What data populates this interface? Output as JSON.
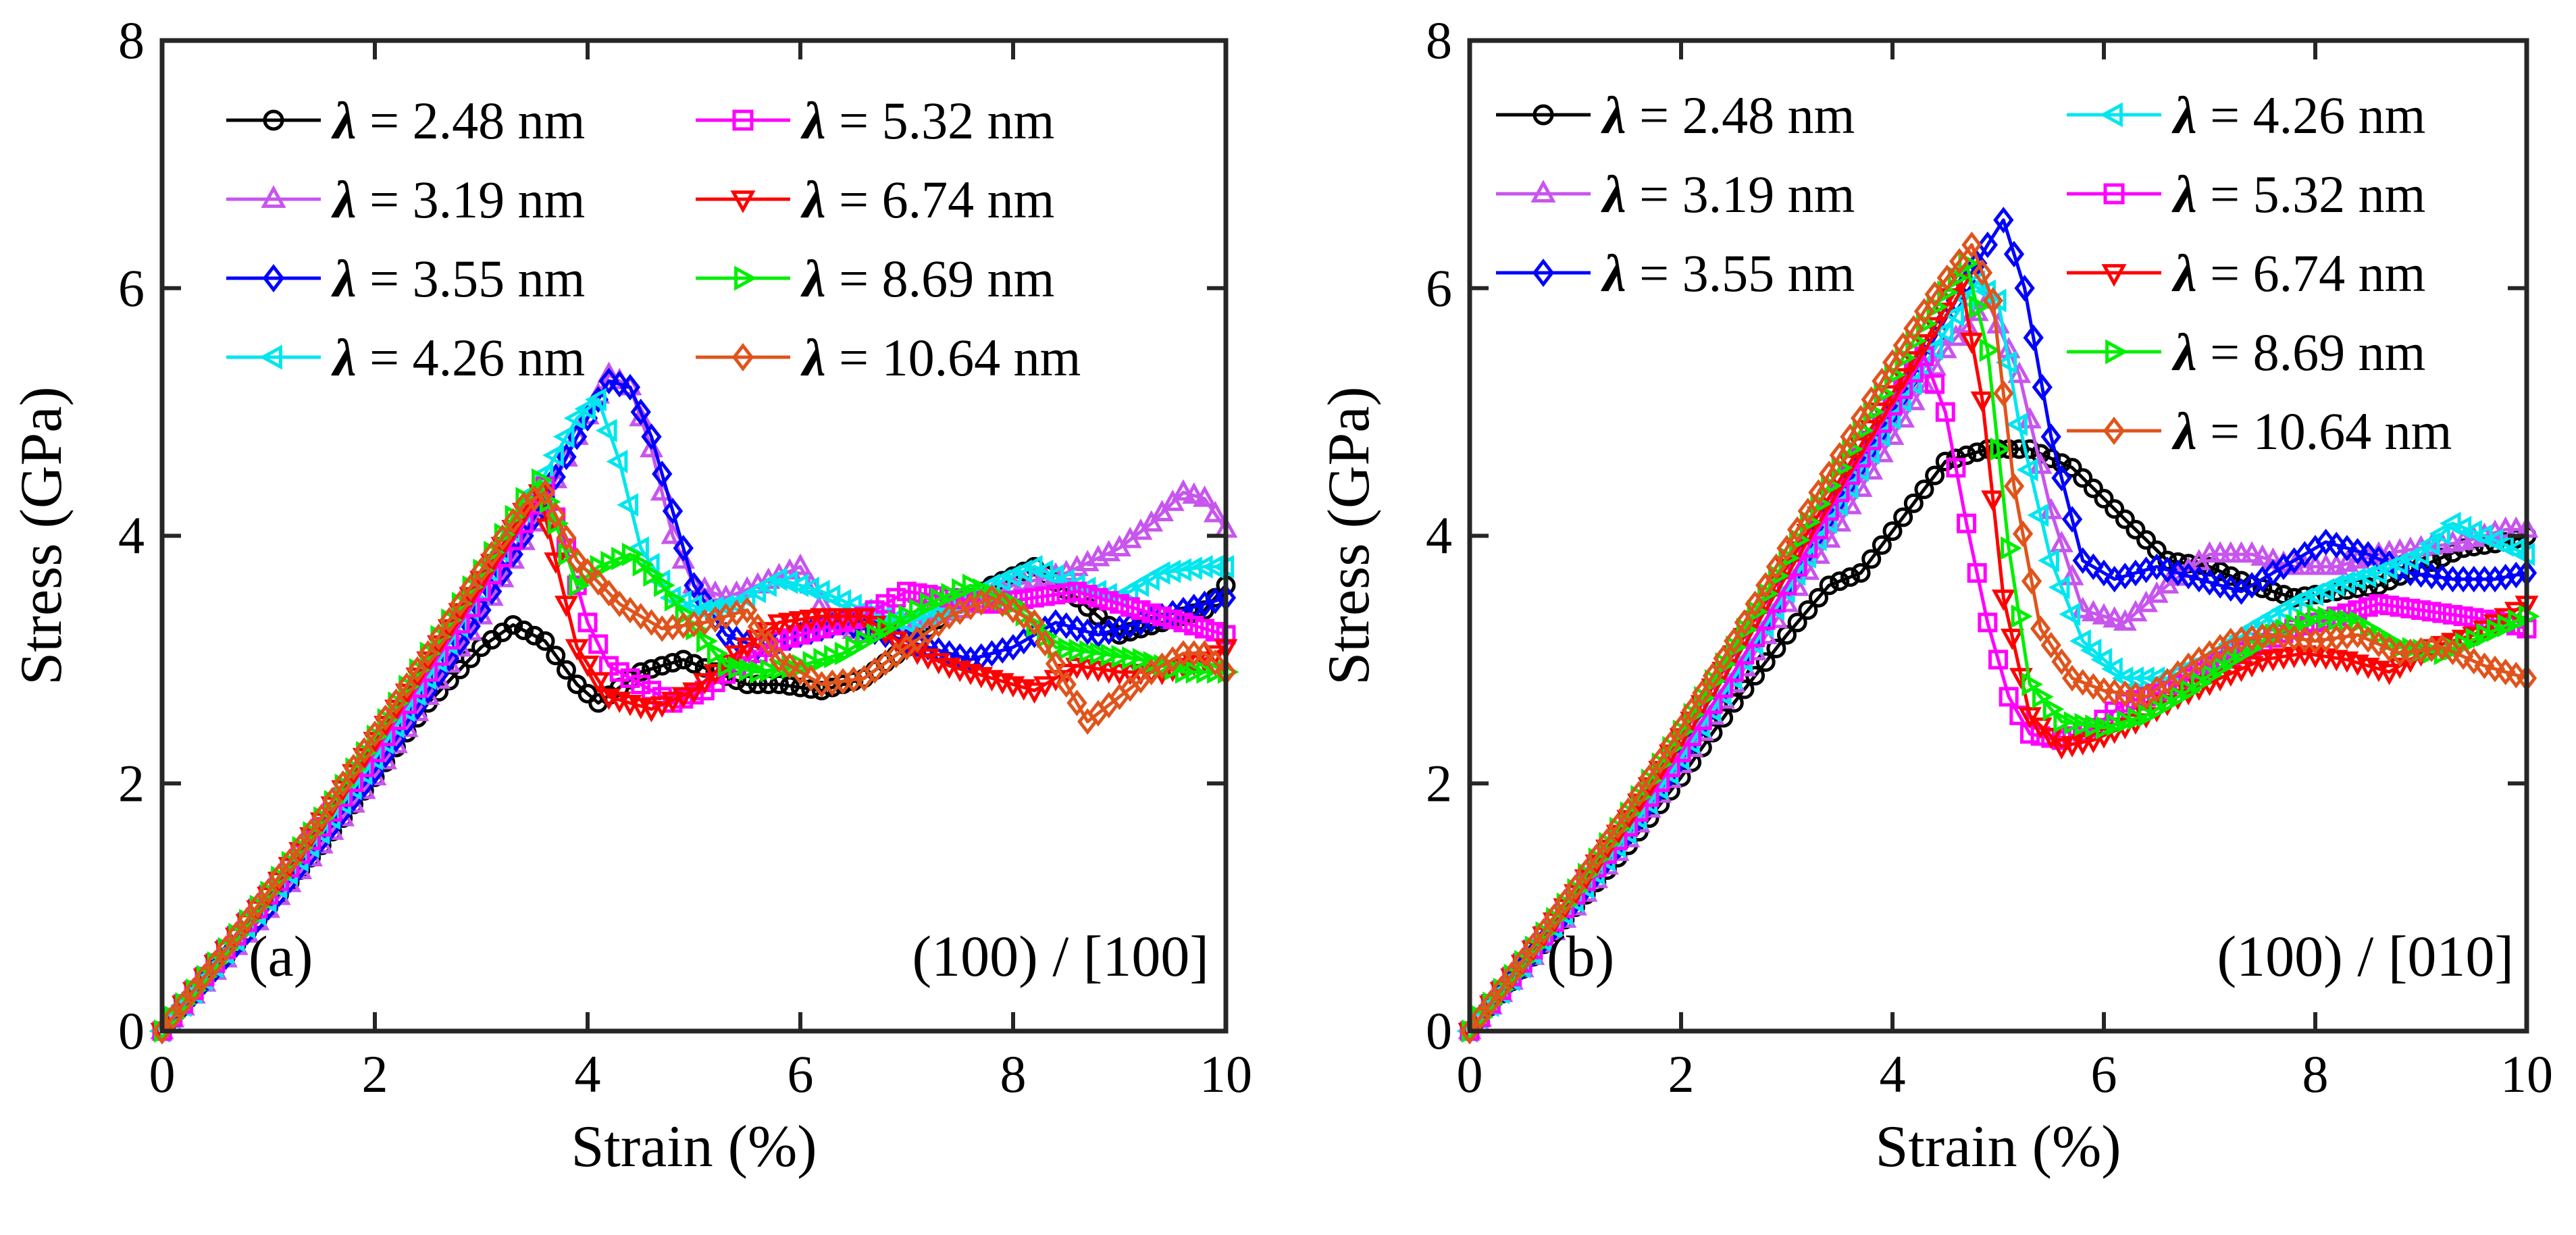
{
  "chart_data": [
    {
      "type": "line",
      "panel_label": "(a)",
      "orientation_label": "(100) / [100]",
      "xlabel": "Strain (%)",
      "ylabel": "Stress (GPa)",
      "xlim": [
        0,
        10
      ],
      "ylim": [
        0,
        8
      ],
      "xticks": [
        "0",
        "2",
        "4",
        "6",
        "8",
        "10"
      ],
      "yticks": [
        "0",
        "2",
        "4",
        "6",
        "8"
      ],
      "legend_columns": 2,
      "series": [
        {
          "name": "λ = 2.48 nm",
          "lambda_value": "2.48 nm",
          "color": "#000000",
          "marker": "circle",
          "x": [
            0,
            0.5,
            1,
            1.5,
            2,
            2.5,
            3,
            3.3,
            3.6,
            3.9,
            4.1,
            4.5,
            4.9,
            5.2,
            5.5,
            5.8,
            6.2,
            6.6,
            7,
            7.4,
            7.8,
            8.2,
            8.6,
            9,
            9.4,
            9.8,
            10
          ],
          "y": [
            0,
            0.5,
            1.0,
            1.5,
            2.05,
            2.65,
            3.1,
            3.28,
            3.15,
            2.8,
            2.65,
            2.9,
            3.0,
            2.9,
            2.8,
            2.8,
            2.75,
            2.85,
            3.1,
            3.4,
            3.6,
            3.75,
            3.5,
            3.2,
            3.3,
            3.4,
            3.6
          ]
        },
        {
          "name": "λ = 3.19 nm",
          "lambda_value": "3.19 nm",
          "color": "#c755ee",
          "marker": "triangle-up",
          "x": [
            0,
            0.5,
            1,
            1.5,
            2,
            2.5,
            3,
            3.5,
            3.9,
            4.2,
            4.4,
            4.6,
            4.8,
            5.0,
            5.3,
            5.6,
            6.0,
            6.3,
            6.6,
            7,
            7.5,
            8,
            8.5,
            9,
            9.3,
            9.6,
            9.8,
            10
          ],
          "y": [
            0,
            0.48,
            0.98,
            1.5,
            2.05,
            2.7,
            3.35,
            4.1,
            4.8,
            5.3,
            5.2,
            4.7,
            4.0,
            3.6,
            3.5,
            3.6,
            3.75,
            3.3,
            3.2,
            3.3,
            3.4,
            3.6,
            3.7,
            3.9,
            4.1,
            4.35,
            4.3,
            4.05
          ]
        },
        {
          "name": "λ = 3.55 nm",
          "lambda_value": "3.55 nm",
          "color": "#0000ff",
          "marker": "diamond",
          "x": [
            0,
            0.5,
            1,
            1.5,
            2,
            2.5,
            3,
            3.5,
            3.9,
            4.2,
            4.4,
            4.6,
            4.8,
            5.0,
            5.3,
            5.6,
            6.0,
            6.4,
            6.8,
            7.2,
            7.6,
            8,
            8.4,
            8.8,
            9.2,
            9.6,
            10
          ],
          "y": [
            0,
            0.5,
            1.0,
            1.55,
            2.1,
            2.75,
            3.4,
            4.15,
            4.8,
            5.25,
            5.2,
            4.8,
            4.2,
            3.6,
            3.2,
            3.1,
            3.2,
            3.3,
            3.2,
            3.1,
            3.0,
            3.1,
            3.3,
            3.2,
            3.3,
            3.4,
            3.5
          ]
        },
        {
          "name": "λ = 4.26 nm",
          "lambda_value": "4.26 nm",
          "color": "#00e6ee",
          "marker": "triangle-left",
          "x": [
            0,
            0.5,
            1,
            1.5,
            2,
            2.5,
            3,
            3.5,
            3.9,
            4.1,
            4.3,
            4.5,
            4.8,
            5.1,
            5.4,
            5.8,
            6.2,
            6.6,
            7,
            7.4,
            7.8,
            8.2,
            8.6,
            9,
            9.4,
            9.8,
            10
          ],
          "y": [
            0,
            0.52,
            1.05,
            1.6,
            2.2,
            2.85,
            3.55,
            4.35,
            4.95,
            5.1,
            4.6,
            3.9,
            3.5,
            3.4,
            3.45,
            3.65,
            3.55,
            3.4,
            3.3,
            3.4,
            3.6,
            3.75,
            3.6,
            3.5,
            3.7,
            3.75,
            3.75
          ]
        },
        {
          "name": "λ = 5.32 nm",
          "lambda_value": "5.32 nm",
          "color": "#ff00ff",
          "marker": "square",
          "x": [
            0,
            0.5,
            1,
            1.5,
            2,
            2.5,
            3,
            3.4,
            3.6,
            3.8,
            4.0,
            4.2,
            4.5,
            4.8,
            5.1,
            5.4,
            5.8,
            6.2,
            6.6,
            7,
            7.4,
            7.8,
            8.2,
            8.6,
            9,
            9.4,
            9.8,
            10
          ],
          "y": [
            0,
            0.55,
            1.1,
            1.65,
            2.25,
            2.9,
            3.55,
            4.1,
            4.4,
            3.9,
            3.3,
            2.95,
            2.8,
            2.65,
            2.75,
            2.95,
            3.15,
            3.25,
            3.35,
            3.55,
            3.5,
            3.45,
            3.5,
            3.55,
            3.45,
            3.35,
            3.25,
            3.2
          ]
        },
        {
          "name": "λ = 6.74 nm",
          "lambda_value": "6.74 nm",
          "color": "#ff0000",
          "marker": "triangle-down",
          "x": [
            0,
            0.5,
            1,
            1.5,
            2,
            2.5,
            3,
            3.4,
            3.55,
            3.7,
            3.9,
            4.2,
            4.6,
            5.0,
            5.4,
            5.8,
            6.2,
            6.6,
            7,
            7.4,
            7.8,
            8.2,
            8.6,
            9,
            9.4,
            9.8,
            10
          ],
          "y": [
            0,
            0.55,
            1.1,
            1.7,
            2.35,
            3.0,
            3.65,
            4.2,
            4.35,
            3.8,
            3.1,
            2.7,
            2.6,
            2.75,
            3.05,
            3.3,
            3.35,
            3.35,
            3.1,
            2.95,
            2.85,
            2.75,
            2.95,
            2.9,
            2.9,
            3.0,
            3.1
          ]
        },
        {
          "name": "λ = 8.69 nm",
          "lambda_value": "8.69 nm",
          "color": "#00ee00",
          "marker": "triangle-right",
          "x": [
            0,
            0.5,
            1,
            1.5,
            2,
            2.5,
            3,
            3.4,
            3.55,
            3.7,
            3.9,
            4.1,
            4.4,
            4.7,
            5.0,
            5.3,
            5.6,
            6.0,
            6.4,
            6.8,
            7.2,
            7.6,
            8,
            8.4,
            8.8,
            9.2,
            9.6,
            10
          ],
          "y": [
            0,
            0.55,
            1.12,
            1.72,
            2.38,
            3.05,
            3.72,
            4.3,
            4.45,
            4.1,
            3.6,
            3.75,
            3.85,
            3.6,
            3.25,
            2.95,
            2.9,
            2.95,
            3.05,
            3.25,
            3.45,
            3.6,
            3.45,
            3.1,
            3.05,
            3.0,
            2.9,
            2.9
          ]
        },
        {
          "name": "λ = 10.64 nm",
          "lambda_value": "10.64 nm",
          "color": "#e0541c",
          "marker": "diamond",
          "x": [
            0,
            0.5,
            1,
            1.5,
            2,
            2.5,
            3,
            3.4,
            3.6,
            3.9,
            4.3,
            4.7,
            5.1,
            5.5,
            5.8,
            6.2,
            6.6,
            7,
            7.4,
            7.8,
            8.2,
            8.5,
            8.7,
            9,
            9.3,
            9.6,
            9.8,
            10
          ],
          "y": [
            0,
            0.55,
            1.13,
            1.73,
            2.4,
            3.05,
            3.72,
            4.25,
            4.35,
            3.8,
            3.45,
            3.25,
            3.3,
            3.4,
            3.0,
            2.8,
            2.85,
            3.1,
            3.35,
            3.5,
            3.3,
            2.8,
            2.5,
            2.7,
            2.9,
            3.05,
            3.05,
            2.9
          ]
        }
      ]
    },
    {
      "type": "line",
      "panel_label": "(b)",
      "orientation_label": "(100) / [010]",
      "xlabel": "Strain (%)",
      "ylabel": "Stress (GPa)",
      "xlim": [
        0,
        10
      ],
      "ylim": [
        0,
        8
      ],
      "xticks": [
        "0",
        "2",
        "4",
        "6",
        "8",
        "10"
      ],
      "yticks": [
        "0",
        "2",
        "4",
        "6",
        "8"
      ],
      "legend_columns": 2,
      "series": [
        {
          "name": "λ = 2.48 nm",
          "lambda_value": "2.48 nm",
          "color": "#000000",
          "marker": "circle",
          "x": [
            0,
            0.5,
            1,
            1.5,
            2,
            2.5,
            3,
            3.4,
            3.7,
            4.1,
            4.5,
            4.9,
            5.3,
            5.7,
            6.0,
            6.3,
            6.6,
            7.0,
            7.4,
            7.8,
            8.2,
            8.6,
            9.0,
            9.4,
            9.8,
            10
          ],
          "y": [
            0,
            0.5,
            1.0,
            1.5,
            2.05,
            2.65,
            3.2,
            3.6,
            3.7,
            4.15,
            4.6,
            4.7,
            4.7,
            4.55,
            4.3,
            4.05,
            3.8,
            3.75,
            3.6,
            3.5,
            3.55,
            3.6,
            3.75,
            3.9,
            3.95,
            4.0
          ]
        },
        {
          "name": "λ = 3.19 nm",
          "lambda_value": "3.19 nm",
          "color": "#c755ee",
          "marker": "triangle-up",
          "x": [
            0,
            0.5,
            1,
            1.5,
            2,
            2.5,
            3,
            3.5,
            4.0,
            4.5,
            4.9,
            5.2,
            5.5,
            5.8,
            6.2,
            6.6,
            7.0,
            7.4,
            7.8,
            8.2,
            8.6,
            9.0,
            9.4,
            9.8,
            10
          ],
          "y": [
            0,
            0.5,
            1.0,
            1.55,
            2.15,
            2.8,
            3.45,
            4.1,
            4.8,
            5.5,
            5.9,
            5.3,
            4.2,
            3.4,
            3.3,
            3.6,
            3.85,
            3.85,
            3.75,
            3.75,
            3.85,
            3.9,
            3.95,
            4.05,
            4.05
          ]
        },
        {
          "name": "λ = 3.55 nm",
          "lambda_value": "3.55 nm",
          "color": "#0000ff",
          "marker": "diamond",
          "x": [
            0,
            0.5,
            1,
            1.5,
            2,
            2.5,
            3,
            3.5,
            4.0,
            4.5,
            4.9,
            5.05,
            5.25,
            5.5,
            5.8,
            6.1,
            6.5,
            6.9,
            7.3,
            7.7,
            8.1,
            8.5,
            8.9,
            9.3,
            9.7,
            10
          ],
          "y": [
            0,
            0.52,
            1.05,
            1.6,
            2.2,
            2.9,
            3.6,
            4.3,
            5.0,
            5.75,
            6.35,
            6.55,
            6.0,
            4.8,
            3.8,
            3.65,
            3.75,
            3.65,
            3.55,
            3.75,
            3.95,
            3.85,
            3.7,
            3.65,
            3.65,
            3.7
          ]
        },
        {
          "name": "λ = 4.26 nm",
          "lambda_value": "4.26 nm",
          "color": "#00e6ee",
          "marker": "triangle-left",
          "x": [
            0,
            0.5,
            1,
            1.5,
            2,
            2.5,
            3,
            3.5,
            4.0,
            4.5,
            4.8,
            5.0,
            5.2,
            5.5,
            5.8,
            6.2,
            6.6,
            7.0,
            7.4,
            7.8,
            8.2,
            8.6,
            9.0,
            9.3,
            9.6,
            10
          ],
          "y": [
            0,
            0.52,
            1.05,
            1.6,
            2.2,
            2.85,
            3.55,
            4.25,
            4.95,
            5.65,
            6.05,
            5.9,
            4.9,
            3.8,
            3.15,
            2.85,
            2.85,
            3.0,
            3.25,
            3.45,
            3.6,
            3.7,
            3.85,
            4.1,
            4.0,
            3.85
          ]
        },
        {
          "name": "λ = 5.32 nm",
          "lambda_value": "5.32 nm",
          "color": "#ff00ff",
          "marker": "square",
          "x": [
            0,
            0.5,
            1,
            1.5,
            2,
            2.5,
            3,
            3.5,
            4.0,
            4.3,
            4.5,
            4.7,
            4.9,
            5.1,
            5.3,
            5.6,
            5.9,
            6.2,
            6.6,
            7.0,
            7.4,
            7.8,
            8.2,
            8.6,
            9.0,
            9.4,
            9.8,
            10
          ],
          "y": [
            0,
            0.55,
            1.1,
            1.65,
            2.25,
            2.9,
            3.6,
            4.35,
            5.05,
            5.45,
            5.0,
            4.1,
            3.3,
            2.7,
            2.4,
            2.35,
            2.45,
            2.65,
            2.75,
            2.95,
            3.1,
            3.25,
            3.35,
            3.45,
            3.4,
            3.35,
            3.3,
            3.25
          ]
        },
        {
          "name": "λ = 6.74 nm",
          "lambda_value": "6.74 nm",
          "color": "#ff0000",
          "marker": "triangle-down",
          "x": [
            0,
            0.5,
            1,
            1.5,
            2,
            2.5,
            3,
            3.5,
            4.0,
            4.4,
            4.65,
            4.85,
            5.05,
            5.3,
            5.6,
            5.9,
            6.3,
            6.7,
            7.1,
            7.5,
            7.9,
            8.3,
            8.7,
            9.1,
            9.5,
            9.8,
            10
          ],
          "y": [
            0,
            0.55,
            1.12,
            1.72,
            2.38,
            3.05,
            3.75,
            4.45,
            5.15,
            5.7,
            6.05,
            5.1,
            3.5,
            2.55,
            2.3,
            2.35,
            2.5,
            2.7,
            2.85,
            3.0,
            3.05,
            3.0,
            2.9,
            3.1,
            3.2,
            3.35,
            3.45
          ]
        },
        {
          "name": "λ = 8.69 nm",
          "lambda_value": "8.69 nm",
          "color": "#00ee00",
          "marker": "triangle-right",
          "x": [
            0,
            0.5,
            1,
            1.5,
            2,
            2.5,
            3,
            3.5,
            4.0,
            4.4,
            4.7,
            4.9,
            5.1,
            5.3,
            5.6,
            6.0,
            6.4,
            6.8,
            7.2,
            7.6,
            8.0,
            8.4,
            8.8,
            9.2,
            9.6,
            10
          ],
          "y": [
            0,
            0.56,
            1.14,
            1.76,
            2.42,
            3.1,
            3.82,
            4.55,
            5.3,
            5.85,
            6.2,
            5.5,
            3.9,
            2.8,
            2.5,
            2.45,
            2.55,
            2.75,
            3.0,
            3.2,
            3.35,
            3.3,
            3.1,
            3.05,
            3.2,
            3.35
          ]
        },
        {
          "name": "λ = 10.64 nm",
          "lambda_value": "10.64 nm",
          "color": "#e0541c",
          "marker": "diamond",
          "x": [
            0,
            0.5,
            1,
            1.5,
            2,
            2.5,
            3,
            3.5,
            4.0,
            4.4,
            4.75,
            4.95,
            5.15,
            5.4,
            5.7,
            6.0,
            6.4,
            6.8,
            7.2,
            7.6,
            8.0,
            8.4,
            8.8,
            9.2,
            9.6,
            10
          ],
          "y": [
            0,
            0.57,
            1.16,
            1.78,
            2.45,
            3.15,
            3.9,
            4.65,
            5.4,
            5.95,
            6.35,
            5.9,
            4.4,
            3.25,
            2.85,
            2.75,
            2.7,
            2.95,
            3.15,
            3.2,
            3.15,
            3.2,
            3.05,
            3.1,
            2.95,
            2.85
          ]
        }
      ]
    }
  ]
}
